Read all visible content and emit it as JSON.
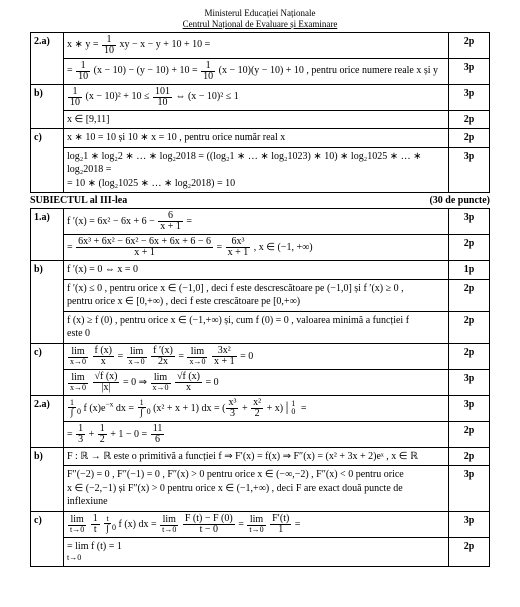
{
  "header": {
    "line1": "Ministerul Educației Naționale",
    "line2": "Centrul Național de Evaluare și Examinare"
  },
  "section3": {
    "title": "SUBIECTUL al III-lea",
    "points": "(30 de puncte)"
  },
  "pts": {
    "p1": "1p",
    "p2": "2p",
    "p3": "3p"
  },
  "s2": {
    "a1": "x ∗ y =",
    "a1mid": "xy − x − y + 10 + 10 =",
    "a2pre": "=",
    "a2mid": "(x − 10) − (y − 10) + 10 =",
    "a2end": "(x − 10)(y − 10) + 10 , pentru orice numere reale x și y",
    "b1pre": "",
    "b1mid": "(x − 10)² + 10 ≤",
    "b1end": "⇔ (x − 10)² ≤ 1",
    "b2": "x ∈ [9,11]",
    "c1": "x ∗ 10 = 10  și  10 ∗ x = 10 , pentru orice număr real x",
    "c2": "log₂1 ∗ log₂2 ∗ … ∗ log₂2018 = ((log₂1 ∗ … ∗ log₂1023) ∗ 10) ∗ log₂1025 ∗ … ∗ log₂2018 =",
    "c3": "= 10 ∗ (log₂1025 ∗ … ∗ log₂2018) = 10"
  },
  "s3": {
    "a1pre": "f ′(x) = 6x² − 6x + 6 −",
    "a1post": " =",
    "a2pre": "=",
    "a2mid": " =",
    "a2end": " , x ∈ (−1, +∞)",
    "b1": "f ′(x) = 0 ⇔ x = 0",
    "b2": "f ′(x) ≤ 0 , pentru orice x ∈ (−1,0] , deci f este descrescătoare pe (−1,0] și f ′(x) ≥ 0 ,",
    "b2b": "pentru orice x ∈ [0,+∞) , deci f este crescătoare pe [0,+∞)",
    "b3": "f (x) ≥ f (0) , pentru orice x ∈ (−1,+∞) și, cum f (0) = 0 , valoarea minimă a funcției f",
    "b3b": "este 0",
    "c1": "= 0",
    "c2": "= 0 ⇒",
    "c2b": "= 0"
  },
  "s4": {
    "a1mid": " =",
    "a1end": " =",
    "a2": "=",
    "a2end": "",
    "b1": "F : ℝ → ℝ este o primitivă a funcției f ⇒ F′(x) = f(x) ⇒ F″(x) = (x² + 3x + 2)eˣ , x ∈ ℝ",
    "b2": "F″(−2) = 0 ,  F″(−1) = 0 ,  F″(x) > 0  pentru orice  x ∈ (−∞,−2) ,  F″(x) < 0  pentru orice",
    "b3": "x ∈ (−2,−1)  și  F″(x) > 0  pentru orice  x ∈ (−1,+∞) , deci F are exact două puncte de",
    "b4": "inflexiune",
    "c2": "= lim f (t) = 1",
    "c2sub": "  t→0"
  }
}
